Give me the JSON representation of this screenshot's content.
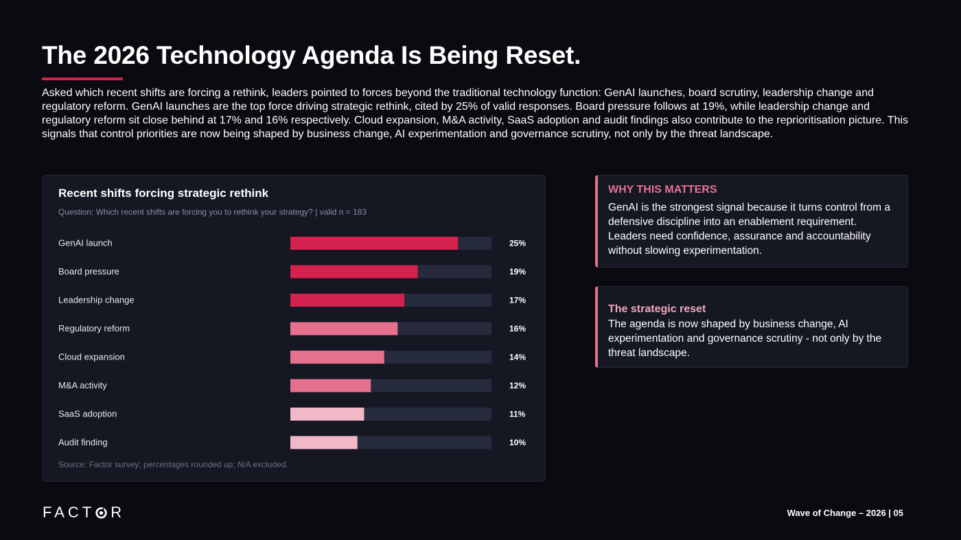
{
  "slide": {
    "title": "The 2026 Technology Agenda Is Being Reset.",
    "intro": "Asked which recent shifts are forcing a rethink, leaders pointed to forces beyond the traditional technology function: GenAI launches, board scrutiny, leadership change and regulatory reform. GenAI launches are the top force driving strategic rethink, cited by 25% of valid responses. Board pressure follows at 19%, while leadership change and regulatory reform sit close behind at 17% and 16% respectively. Cloud expansion, M&A activity, SaaS adoption and audit findings also contribute to the reprioritisation picture. This signals that control priorities are now being shaped by business change, AI experimentation and governance scrutiny, not only by the threat landscape."
  },
  "colors": {
    "accent": "#d5214d",
    "mid": "#e5718f",
    "light": "#f2b8c8",
    "track": "#262a3d",
    "panel": "#151723",
    "background": "#0a0a10"
  },
  "chart_data": {
    "type": "bar",
    "orientation": "horizontal",
    "title": "Recent shifts forcing strategic rethink",
    "subtitle": "Question: Which recent shifts are forcing you to rethink your strategy? | valid n = 183",
    "source": "Source: Factor survey; percentages rounded up; N/A excluded.",
    "categories": [
      "GenAI launch",
      "Board pressure",
      "Leadership change",
      "Regulatory reform",
      "Cloud expansion",
      "M&A activity",
      "SaaS adoption",
      "Audit finding"
    ],
    "values": [
      25,
      19,
      17,
      16,
      14,
      12,
      11,
      10
    ],
    "value_labels": [
      "25%",
      "19%",
      "17%",
      "16%",
      "14%",
      "12%",
      "11%",
      "10%"
    ],
    "bar_colors": [
      "#d5214d",
      "#d5214d",
      "#d5214d",
      "#e5718f",
      "#e5718f",
      "#e5718f",
      "#f2b8c8",
      "#f2b8c8"
    ],
    "xlim": [
      0,
      30
    ],
    "grid": false,
    "legend": "none"
  },
  "callouts": [
    {
      "heading": "WHY THIS MATTERS",
      "body": "GenAI is the strongest signal because it turns control from a defensive discipline into an enablement requirement. Leaders need confidence, assurance and accountability without slowing experimentation."
    },
    {
      "heading": "The strategic reset",
      "body": "The agenda is now shaped by business change, AI experimentation and governance scrutiny - not only by the threat landscape."
    }
  ],
  "footer": {
    "logo_text": "FACTOR",
    "logo_left": "FACT",
    "logo_right": "R",
    "logo_icon": "target-o-icon",
    "page_label": "Wave of Change – 2026 | 05"
  }
}
